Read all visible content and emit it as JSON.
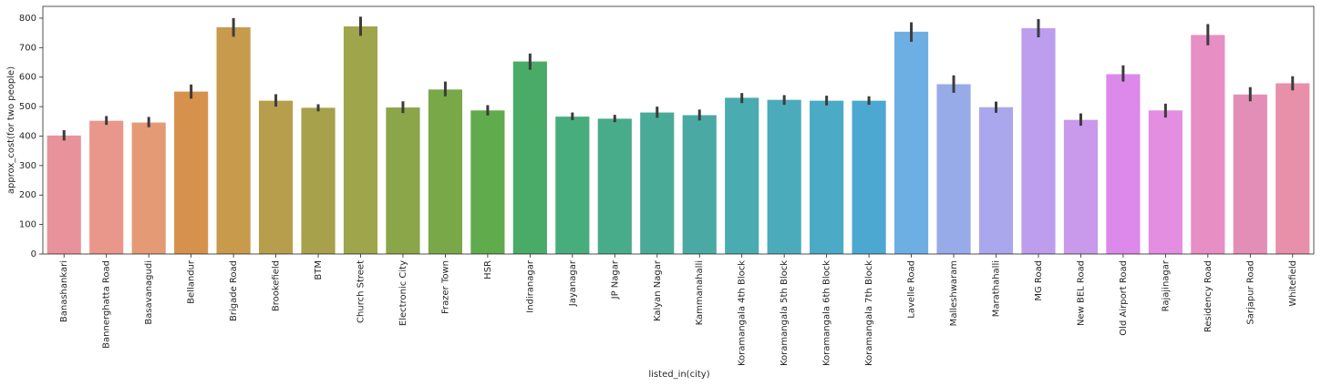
{
  "chart_data": {
    "type": "bar",
    "xlabel": "listed_in(city)",
    "ylabel": "approx_cost(for two people)",
    "ylim": [
      0,
      840
    ],
    "yticks": [
      0,
      100,
      200,
      300,
      400,
      500,
      600,
      700,
      800
    ],
    "grid": false,
    "legend": "none",
    "error_bar_color": "#3c3c3c",
    "bars": [
      {
        "category": "Banashankari",
        "value": 402,
        "ci": [
          385,
          420
        ],
        "color": "#e8929c"
      },
      {
        "category": "Bannerghatta Road",
        "value": 452,
        "ci": [
          438,
          468
        ],
        "color": "#ea978b"
      },
      {
        "category": "Basavanagudi",
        "value": 446,
        "ci": [
          430,
          465
        ],
        "color": "#e59a76"
      },
      {
        "category": "Bellandur",
        "value": 551,
        "ci": [
          527,
          575
        ],
        "color": "#d6924d"
      },
      {
        "category": "Brigade Road",
        "value": 769,
        "ci": [
          737,
          800
        ],
        "color": "#c79a4c"
      },
      {
        "category": "Brookefield",
        "value": 520,
        "ci": [
          500,
          542
        ],
        "color": "#b79e4c"
      },
      {
        "category": "BTM",
        "value": 496,
        "ci": [
          484,
          508
        ],
        "color": "#a8a14b"
      },
      {
        "category": "Church Street",
        "value": 772,
        "ci": [
          740,
          805
        ],
        "color": "#9ea54a"
      },
      {
        "category": "Electronic City",
        "value": 497,
        "ci": [
          478,
          518
        ],
        "color": "#8ba549"
      },
      {
        "category": "Frazer Town",
        "value": 558,
        "ci": [
          535,
          585
        ],
        "color": "#79a849"
      },
      {
        "category": "HSR",
        "value": 487,
        "ci": [
          470,
          505
        ],
        "color": "#60ab4b"
      },
      {
        "category": "Indiranagar",
        "value": 653,
        "ci": [
          625,
          680
        ],
        "color": "#4aab67"
      },
      {
        "category": "Jayanagar",
        "value": 466,
        "ci": [
          454,
          480
        ],
        "color": "#48ad7d"
      },
      {
        "category": "JP Nagar",
        "value": 459,
        "ci": [
          447,
          472
        ],
        "color": "#48ac8b"
      },
      {
        "category": "Kalyan Nagar",
        "value": 480,
        "ci": [
          462,
          500
        ],
        "color": "#49ab97"
      },
      {
        "category": "Kammanahalli",
        "value": 471,
        "ci": [
          453,
          490
        ],
        "color": "#4aaaa3"
      },
      {
        "category": "Koramangala 4th Block",
        "value": 530,
        "ci": [
          512,
          546
        ],
        "color": "#4aabb0"
      },
      {
        "category": "Koramangala 5th Block",
        "value": 523,
        "ci": [
          506,
          539
        ],
        "color": "#4babbb"
      },
      {
        "category": "Koramangala 6th Block",
        "value": 520,
        "ci": [
          504,
          537
        ],
        "color": "#4baac5"
      },
      {
        "category": "Koramangala 7th Block",
        "value": 520,
        "ci": [
          506,
          535
        ],
        "color": "#4ca8d1"
      },
      {
        "category": "Lavelle Road",
        "value": 754,
        "ci": [
          720,
          786
        ],
        "color": "#6eafe3"
      },
      {
        "category": "Malleshwaram",
        "value": 576,
        "ci": [
          547,
          606
        ],
        "color": "#98abe9"
      },
      {
        "category": "Marathahalli",
        "value": 498,
        "ci": [
          479,
          517
        ],
        "color": "#aba7ec"
      },
      {
        "category": "MG Road",
        "value": 766,
        "ci": [
          735,
          797
        ],
        "color": "#bd9eee"
      },
      {
        "category": "New BEL Road",
        "value": 455,
        "ci": [
          435,
          477
        ],
        "color": "#c99aeb"
      },
      {
        "category": "Old Airport Road",
        "value": 610,
        "ci": [
          585,
          640
        ],
        "color": "#dd89eb"
      },
      {
        "category": "Rajajinagar",
        "value": 487,
        "ci": [
          463,
          510
        ],
        "color": "#e38ee0"
      },
      {
        "category": "Residency Road",
        "value": 743,
        "ci": [
          708,
          780
        ],
        "color": "#e78ec4"
      },
      {
        "category": "Sarjapur Road",
        "value": 541,
        "ci": [
          518,
          566
        ],
        "color": "#e38eb7"
      },
      {
        "category": "Whitefield",
        "value": 579,
        "ci": [
          555,
          603
        ],
        "color": "#e88fa9"
      }
    ]
  }
}
